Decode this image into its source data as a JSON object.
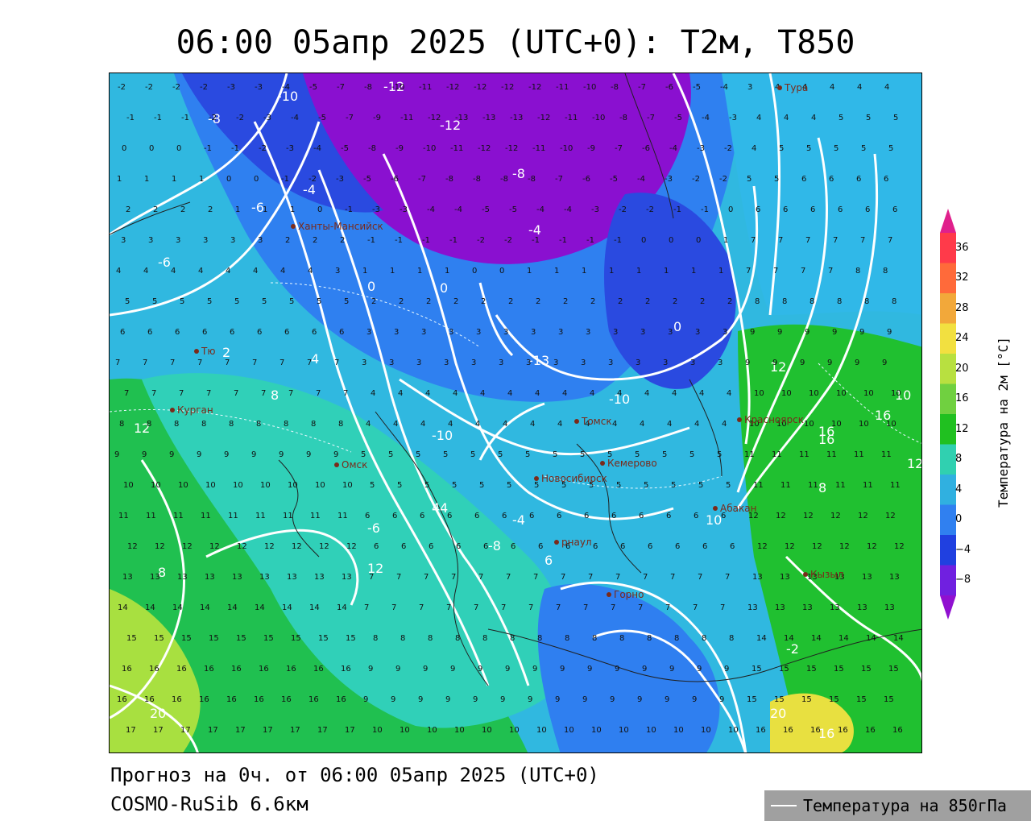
{
  "header": {
    "title": "06:00 05апр 2025 (UTC+0): T2м, T850"
  },
  "footer": {
    "forecast_line": "Прогноз на 0ч. от 06:00 05апр 2025 (UTC+0)",
    "model_line": "COSMO-RuSib 6.6км"
  },
  "colorbar": {
    "title": "Температура на 2м [°C]",
    "ticks": [
      "36",
      "32",
      "28",
      "24",
      "20",
      "16",
      "12",
      "8",
      "4",
      "0",
      "−4",
      "−8"
    ],
    "colors": [
      "#e0208c",
      "#ff3a4a",
      "#ff6a3a",
      "#f2a83a",
      "#f2e040",
      "#b8e040",
      "#70d040",
      "#20c020",
      "#30d0b0",
      "#30b0e0",
      "#3080f0",
      "#2040e0",
      "#7020e0",
      "#9010d0"
    ]
  },
  "legend": {
    "contour_label": "Температура на 850гПа"
  },
  "map": {
    "cities": [
      {
        "name": "Тура"
      },
      {
        "name": "Ханты-Мансийск"
      },
      {
        "name": "Тю"
      },
      {
        "name": "Курган"
      },
      {
        "name": "Омск"
      },
      {
        "name": "Новосибирск"
      },
      {
        "name": "Томск"
      },
      {
        "name": "Кемерово"
      },
      {
        "name": "Красноярск"
      },
      {
        "name": "Абакан"
      },
      {
        "name": "рнаул"
      },
      {
        "name": "Кызыл"
      },
      {
        "name": "Горно"
      }
    ],
    "isotherm_labels": [
      "-12",
      "-12",
      "-10",
      "-8",
      "-8",
      "-6",
      "-6",
      "-4",
      "-4",
      "-2",
      "0",
      "0",
      "2",
      "4",
      "4",
      "6",
      "8",
      "8",
      "10",
      "12",
      "12",
      "16",
      "20",
      "-13",
      "-10",
      "-10",
      "-8",
      "-6",
      "-4",
      "0",
      "4",
      "8",
      "12",
      "16",
      "16",
      "12",
      "10",
      "20",
      "16"
    ]
  }
}
